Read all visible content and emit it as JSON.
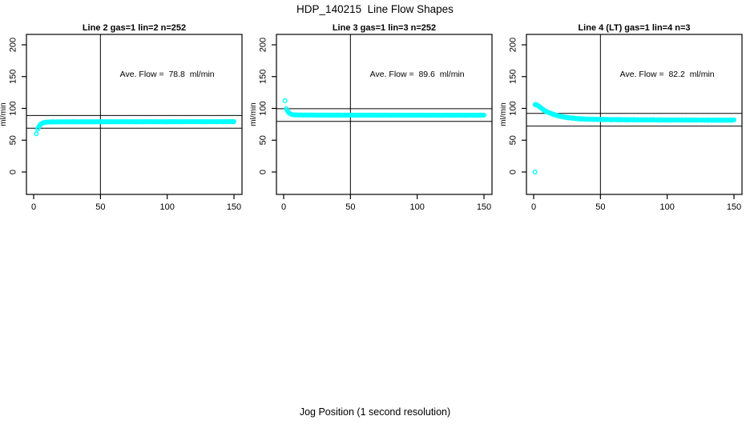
{
  "page": {
    "main_title": "HDP_140215  Line Flow Shapes",
    "outer_xlabel": "Jog Position (1 second resolution)"
  },
  "colors": {
    "points": "#00FFFF",
    "axis": "#000000",
    "background": "#FFFFFF"
  },
  "chart_data": [
    {
      "type": "scatter",
      "title": "Line 2 gas=1 lin=2 n=252",
      "annotation": "Ave. Flow =  78.8  ml/min",
      "ave_flow": 78.8,
      "ylabel": "ml/min",
      "xlim": [
        0,
        156
      ],
      "ylim": [
        -9,
        217
      ],
      "xticks": [
        0,
        50,
        100,
        150
      ],
      "yticks": [
        0,
        50,
        100,
        150,
        200
      ],
      "ref_lines_h": [
        68.8,
        88.8
      ],
      "ref_line_v": 50,
      "outliers": [
        [
          2,
          60
        ]
      ],
      "anchors": [
        [
          3,
          67
        ],
        [
          3.6,
          70
        ],
        [
          4.2,
          72.5
        ],
        [
          5,
          74.5
        ],
        [
          6,
          76.3
        ],
        [
          7,
          77.3
        ],
        [
          8,
          77.9
        ],
        [
          10,
          78.5
        ],
        [
          14,
          78.8
        ],
        [
          30,
          78.9
        ],
        [
          60,
          79.0
        ],
        [
          100,
          79.0
        ],
        [
          150,
          79.1
        ]
      ],
      "sample_step": 0.6,
      "noise": 0.3
    },
    {
      "type": "scatter",
      "title": "Line 3 gas=1 lin=3 n=252",
      "annotation": "Ave. Flow =  89.6  ml/min",
      "ave_flow": 89.6,
      "ylabel": "ml/min",
      "xlim": [
        0,
        156
      ],
      "ylim": [
        -9,
        217
      ],
      "xticks": [
        0,
        50,
        100,
        150
      ],
      "yticks": [
        0,
        50,
        100,
        150,
        200
      ],
      "ref_lines_h": [
        79.6,
        99.6
      ],
      "ref_line_v": 50,
      "outliers": [
        [
          1,
          112
        ]
      ],
      "anchors": [
        [
          2,
          99.5
        ],
        [
          2.6,
          97
        ],
        [
          3.2,
          95
        ],
        [
          4,
          93
        ],
        [
          5,
          91.5
        ],
        [
          6.5,
          90.4
        ],
        [
          8,
          89.9
        ],
        [
          12,
          89.6
        ],
        [
          30,
          89.5
        ],
        [
          80,
          89.4
        ],
        [
          150,
          89.3
        ]
      ],
      "sample_step": 0.6,
      "noise": 0.3
    },
    {
      "type": "scatter",
      "title": "Line 4 (LT) gas=1 lin=4 n=3",
      "annotation": "Ave. Flow =  82.2  ml/min",
      "ave_flow": 82.2,
      "ylabel": "ml/min",
      "xlim": [
        0,
        156
      ],
      "ylim": [
        -9,
        217
      ],
      "xticks": [
        0,
        50,
        100,
        150
      ],
      "yticks": [
        0,
        50,
        100,
        150,
        200
      ],
      "ref_lines_h": [
        72.2,
        92.2
      ],
      "ref_line_v": 50,
      "outliers": [
        [
          1,
          0
        ]
      ],
      "anchors": [
        [
          1,
          106
        ],
        [
          2,
          105.5
        ],
        [
          3,
          104.5
        ],
        [
          4,
          103
        ],
        [
          5,
          101.5
        ],
        [
          6,
          100
        ],
        [
          7,
          98.5
        ],
        [
          8,
          97
        ],
        [
          9,
          95.8
        ],
        [
          10,
          94.7
        ],
        [
          12,
          92.8
        ],
        [
          14,
          91.2
        ],
        [
          16,
          89.8
        ],
        [
          18,
          88.6
        ],
        [
          20,
          87.6
        ],
        [
          23,
          86.4
        ],
        [
          26,
          85.4
        ],
        [
          30,
          84.4
        ],
        [
          35,
          83.6
        ],
        [
          40,
          83.1
        ],
        [
          50,
          82.6
        ],
        [
          60,
          82.3
        ],
        [
          80,
          82.0
        ],
        [
          100,
          81.8
        ],
        [
          125,
          81.6
        ],
        [
          150,
          81.5
        ]
      ],
      "sample_step": 0.6,
      "noise": 0.6
    }
  ]
}
